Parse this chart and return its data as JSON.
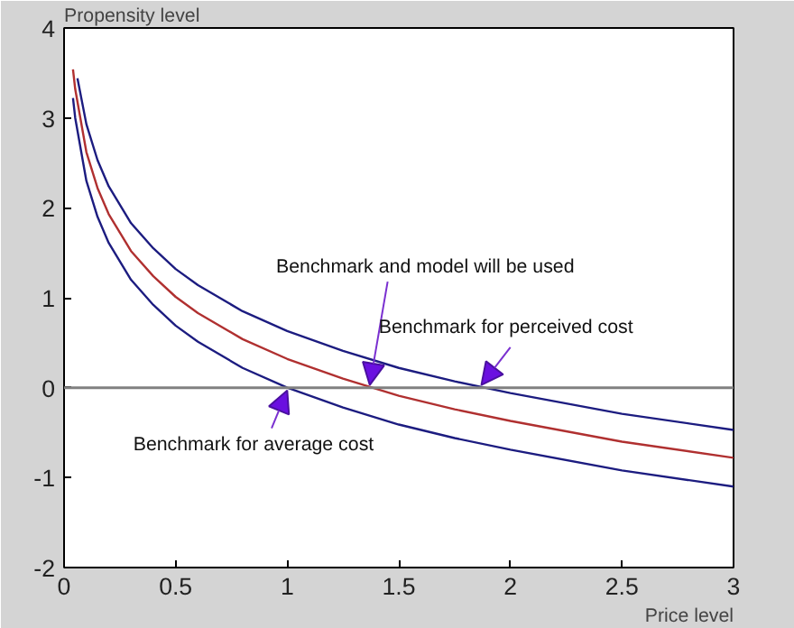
{
  "chart_data": {
    "type": "line",
    "xlabel": "Price level",
    "ylabel": "Propensity level",
    "xlim": [
      0,
      3
    ],
    "ylim": [
      -2,
      4
    ],
    "xticks": [
      0,
      0.5,
      1,
      1.5,
      2,
      2.5,
      3
    ],
    "yticks": [
      -2,
      -1,
      0,
      1,
      2,
      3,
      4
    ],
    "grid": false,
    "marker": "none",
    "line_style": "solid",
    "series": [
      {
        "color": "#1c1c80",
        "x": [
          0.06,
          0.1,
          0.15,
          0.2,
          0.3,
          0.4,
          0.5,
          0.6,
          0.8,
          1,
          1.25,
          1.5,
          1.75,
          2,
          2.5,
          3
        ],
        "values": [
          3.44,
          2.93,
          2.53,
          2.24,
          1.83,
          1.55,
          1.32,
          1.14,
          0.85,
          0.63,
          0.41,
          0.22,
          0.07,
          -0.06,
          -0.29,
          -0.47
        ]
      },
      {
        "color": "#b03030",
        "x": [
          0.04,
          0.05,
          0.1,
          0.15,
          0.2,
          0.3,
          0.4,
          0.5,
          0.6,
          0.8,
          1,
          1.25,
          1.5,
          1.75,
          2,
          2.5,
          3
        ],
        "values": [
          3.54,
          3.32,
          2.62,
          2.22,
          1.93,
          1.52,
          1.24,
          1.01,
          0.83,
          0.54,
          0.32,
          0.1,
          -0.09,
          -0.24,
          -0.37,
          -0.6,
          -0.78
        ]
      },
      {
        "color": "#1c1c80",
        "x": [
          0.04,
          0.05,
          0.1,
          0.15,
          0.2,
          0.3,
          0.4,
          0.5,
          0.6,
          0.8,
          1,
          1.25,
          1.5,
          1.75,
          2,
          2.5,
          3
        ],
        "values": [
          3.22,
          3.0,
          2.3,
          1.9,
          1.61,
          1.2,
          0.92,
          0.69,
          0.51,
          0.22,
          0,
          -0.22,
          -0.41,
          -0.56,
          -0.69,
          -0.92,
          -1.1
        ]
      }
    ],
    "ref_lines": [
      {
        "axis": "y",
        "value": 0,
        "color": "#808080"
      }
    ],
    "annotations": [
      {
        "text": "Benchmark and model will be used",
        "x": 1.37,
        "y": 0
      },
      {
        "text": "Benchmark for perceived cost",
        "x": 1.87,
        "y": 0
      },
      {
        "text": "Benchmark for average cost",
        "x": 1.0,
        "y": 0
      }
    ]
  }
}
